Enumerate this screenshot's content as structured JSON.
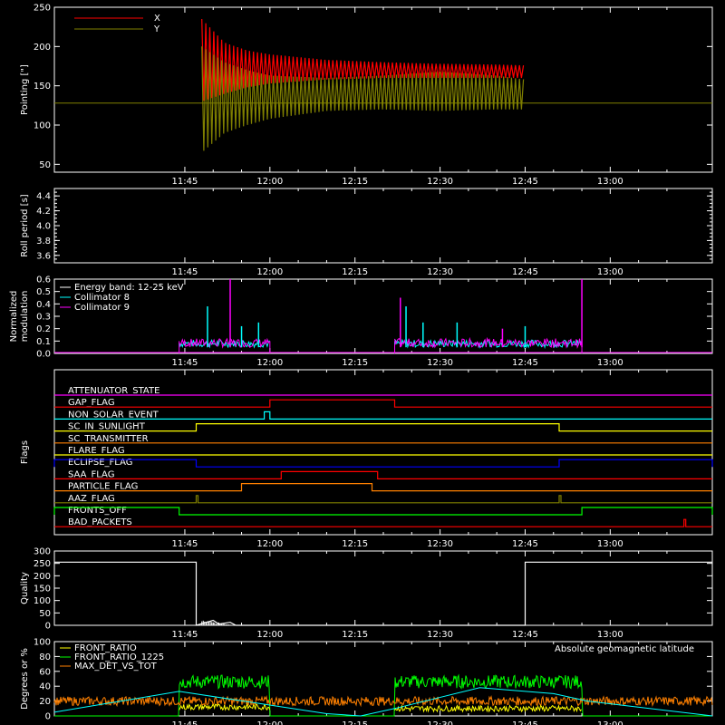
{
  "time_ticks": [
    "11:45",
    "12:00",
    "12:15",
    "12:30",
    "12:45",
    "13:00"
  ],
  "chart_data": [
    {
      "type": "line",
      "ylabel": "Pointing [\"]",
      "ylim": [
        40,
        250
      ],
      "yticks": [
        50,
        100,
        150,
        200,
        250
      ],
      "legend": {
        "placement": "top-left",
        "entries": [
          {
            "name": "X",
            "color": "#ff0000"
          },
          {
            "name": "Y",
            "color": "#808000"
          }
        ]
      },
      "x_range": [
        "11:22",
        "13:18"
      ],
      "series": [
        {
          "name": "X",
          "color": "#ff0000",
          "x": [
            "11:48",
            "11:52",
            "11:56",
            "12:00",
            "12:10",
            "12:20",
            "12:30",
            "12:40",
            "12:45"
          ],
          "upper": [
            235,
            205,
            195,
            190,
            183,
            180,
            178,
            177,
            176
          ],
          "lower": [
            130,
            140,
            148,
            153,
            158,
            160,
            160,
            160,
            160
          ]
        },
        {
          "name": "Y",
          "color": "#808000",
          "x": [
            "11:48",
            "11:52",
            "11:56",
            "12:00",
            "12:10",
            "12:20",
            "12:30",
            "12:40",
            "12:45"
          ],
          "upper": [
            200,
            180,
            170,
            163,
            160,
            163,
            168,
            163,
            158
          ],
          "lower": [
            65,
            90,
            100,
            108,
            118,
            120,
            118,
            120,
            120
          ]
        }
      ],
      "baseline": {
        "value": 128,
        "color": "#808000"
      }
    },
    {
      "type": "line",
      "ylabel": "Roll period [s]",
      "ylim": [
        3.5,
        4.5
      ],
      "yticks": [
        3.6,
        3.8,
        4.0,
        4.2,
        4.4
      ],
      "series": []
    },
    {
      "type": "line",
      "ylabel": "Normalized modulation",
      "ylim": [
        0,
        0.6
      ],
      "yticks": [
        0.0,
        0.1,
        0.2,
        0.3,
        0.4,
        0.5,
        0.6
      ],
      "legend": {
        "placement": "top-left",
        "entries": [
          {
            "name": "Energy band: 12-25 keV",
            "color": "#ffffff"
          },
          {
            "name": "Collimator 8",
            "color": "#00ffff"
          },
          {
            "name": "Collimator 9",
            "color": "#ff00ff"
          }
        ]
      },
      "segments": [
        [
          "11:44",
          "12:00"
        ],
        [
          "12:22",
          "12:55"
        ]
      ],
      "spikes": {
        "collimator_8": [
          [
            "11:49",
            0.38
          ],
          [
            "11:55",
            0.22
          ],
          [
            "11:58",
            0.25
          ],
          [
            "12:24",
            0.38
          ],
          [
            "12:27",
            0.25
          ],
          [
            "12:33",
            0.25
          ],
          [
            "12:45",
            0.22
          ]
        ],
        "collimator_9": [
          [
            "11:53",
            0.6
          ],
          [
            "12:23",
            0.45
          ],
          [
            "12:41",
            0.2
          ],
          [
            "12:55",
            0.6
          ]
        ]
      }
    },
    {
      "type": "line",
      "ylabel": "Flags",
      "flags": [
        {
          "name": "ATTENUATOR_STATE",
          "color": "#ff00ff",
          "on": []
        },
        {
          "name": "GAP_FLAG",
          "color": "#ff0000",
          "on": [
            [
              "12:00",
              "12:22"
            ]
          ]
        },
        {
          "name": "NON_SOLAR_EVENT",
          "color": "#00ffff",
          "on": [
            [
              "11:59",
              "12:00"
            ]
          ]
        },
        {
          "name": "SC_IN_SUNLIGHT",
          "color": "#ffff00",
          "on": [
            [
              "11:47",
              "12:51"
            ]
          ]
        },
        {
          "name": "SC_TRANSMITTER",
          "color": "#ff8000",
          "on": []
        },
        {
          "name": "FLARE_FLAG",
          "color": "#ffff00",
          "on": []
        },
        {
          "name": "ECLIPSE_FLAG",
          "color": "#0000ff",
          "on": [
            [
              "11:22",
              "11:47"
            ],
            [
              "12:51",
              "13:18"
            ]
          ]
        },
        {
          "name": "SAA_FLAG",
          "color": "#ff0000",
          "on": [
            [
              "12:02",
              "12:19"
            ]
          ]
        },
        {
          "name": "PARTICLE_FLAG",
          "color": "#ff8000",
          "on": [
            [
              "11:55",
              "12:18"
            ]
          ]
        },
        {
          "name": "AAZ_FLAG",
          "color": "#808000",
          "on": [
            [
              "11:47",
              "11:47"
            ],
            [
              "12:51",
              "12:51"
            ]
          ]
        },
        {
          "name": "FRONTS_OFF",
          "color": "#00ff00",
          "on": [
            [
              "11:22",
              "11:44"
            ],
            [
              "12:55",
              "13:18"
            ]
          ]
        },
        {
          "name": "BAD_PACKETS",
          "color": "#ff0000",
          "on": [
            [
              "13:13",
              "13:13"
            ]
          ]
        }
      ]
    },
    {
      "type": "line",
      "ylabel": "Quality",
      "ylim": [
        0,
        300
      ],
      "yticks": [
        0,
        50,
        100,
        150,
        200,
        250,
        300
      ],
      "series": [
        {
          "name": "",
          "color": "#ffffff",
          "x": [
            "11:22",
            "11:47",
            "11:47",
            "11:50",
            "11:51",
            "11:53",
            "11:54",
            "12:45",
            "12:45",
            "13:18"
          ],
          "values": [
            255,
            255,
            0,
            20,
            5,
            12,
            0,
            0,
            255,
            255
          ]
        }
      ]
    },
    {
      "type": "line",
      "ylabel": "Degrees or %",
      "ylim": [
        0,
        100
      ],
      "yticks": [
        0,
        20,
        40,
        60,
        80,
        100
      ],
      "legend": {
        "placement": "top-left",
        "entries": [
          {
            "name": "FRONT_RATIO",
            "color": "#ffff00"
          },
          {
            "name": "FRONT_RATIO_1225",
            "color": "#00ff00"
          },
          {
            "name": "MAX_DET_VS_TOT",
            "color": "#ff8000"
          }
        ]
      },
      "annotation": {
        "text": "Absolute geomagnetic latitude",
        "color": "#00ffff"
      },
      "series": [
        {
          "name": "Absolute geomagnetic latitude",
          "color": "#00ffff",
          "x": [
            "11:22",
            "11:44",
            "12:10",
            "12:16",
            "12:22",
            "12:37",
            "12:50",
            "12:56",
            "13:18"
          ],
          "values": [
            5,
            33,
            3,
            0,
            10,
            38,
            30,
            20,
            0
          ]
        },
        {
          "name": "FRONT_RATIO_1225",
          "color": "#00ff00",
          "segments": [
            [
              "11:44",
              "12:00",
              46
            ],
            [
              "12:22",
              "12:55",
              46
            ]
          ],
          "outside": 0
        },
        {
          "name": "MAX_DET_VS_TOT",
          "color": "#ff8000",
          "segments": [
            [
              "11:22",
              "13:18",
              20
            ]
          ]
        },
        {
          "name": "FRONT_RATIO",
          "color": "#ffff00",
          "segments": [
            [
              "11:44",
              "12:00",
              12
            ],
            [
              "12:22",
              "12:55",
              10
            ]
          ]
        }
      ]
    }
  ]
}
